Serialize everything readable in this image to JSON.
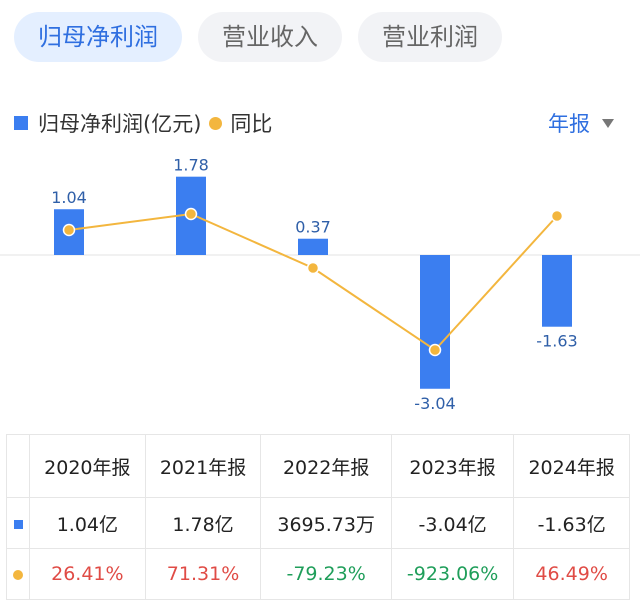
{
  "tabs": [
    {
      "label": "归母净利润",
      "active": true
    },
    {
      "label": "营业收入",
      "active": false
    },
    {
      "label": "营业利润",
      "active": false
    }
  ],
  "legend": {
    "series1": "归母净利润(亿元)",
    "series2": "同比"
  },
  "period_selector": {
    "label": "年报"
  },
  "colors": {
    "bar": "#3b7ef0",
    "line": "#f3b63e",
    "positive": "#e04b45",
    "negative": "#1f9e5a"
  },
  "chart_data": {
    "type": "bar",
    "categories": [
      "2020年报",
      "2021年报",
      "2022年报",
      "2023年报",
      "2024年报"
    ],
    "series": [
      {
        "name": "归母净利润(亿元)",
        "values": [
          1.04,
          1.78,
          0.37,
          -3.04,
          -1.63
        ],
        "labels": [
          "1.04",
          "1.78",
          "0.37",
          "-3.04",
          "-1.63"
        ]
      },
      {
        "name": "同比",
        "values": [
          26.41,
          71.31,
          -79.23,
          -923.06,
          46.49
        ]
      }
    ],
    "ylim": [
      -3.3,
      2.2
    ]
  },
  "table": {
    "headers": [
      "2020年报",
      "2021年报",
      "2022年报",
      "2023年报",
      "2024年报"
    ],
    "profit_row": [
      "1.04亿",
      "1.78亿",
      "3695.73万",
      "-3.04亿",
      "-1.63亿"
    ],
    "yoy_row": [
      "26.41%",
      "71.31%",
      "-79.23%",
      "-923.06%",
      "46.49%"
    ]
  }
}
